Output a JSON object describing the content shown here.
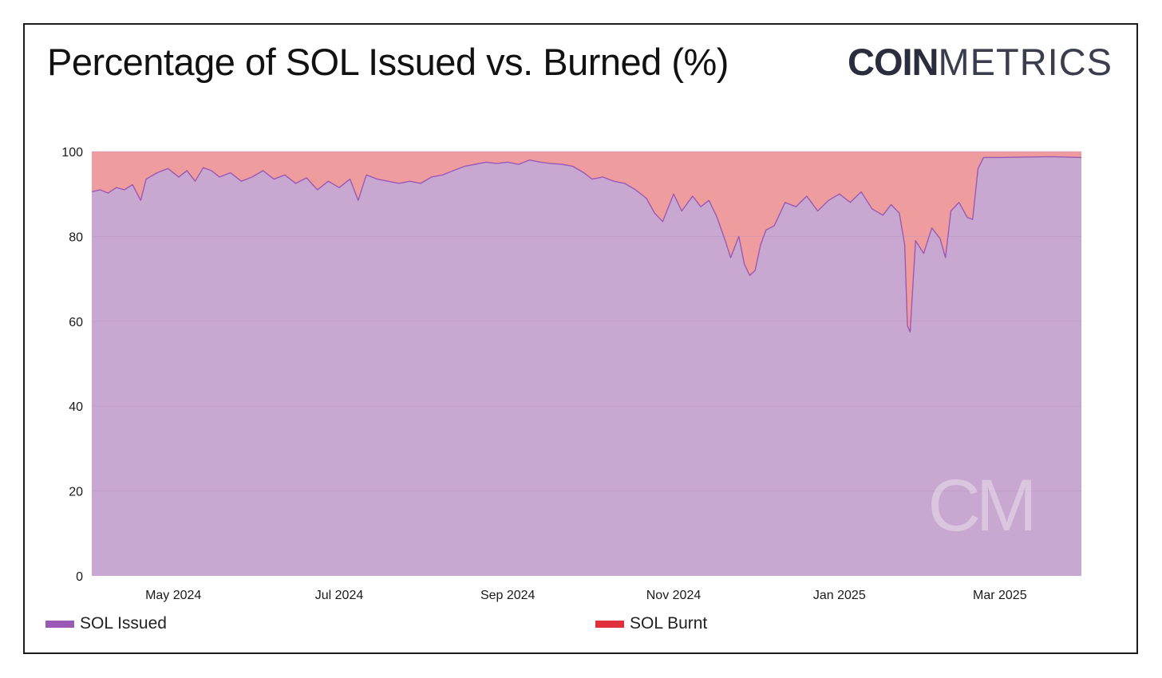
{
  "title": "Percentage of SOL Issued vs. Burned (%)",
  "logo": {
    "bold": "COIN",
    "light": "METRICS",
    "watermark": "CM"
  },
  "colors": {
    "issued_fill": "#c8a8d0",
    "issued_line": "#9b59b6",
    "burnt_fill": "#ef9c9e",
    "legend_issued": "#9b59b6",
    "legend_burnt": "#e0303c"
  },
  "chart_data": {
    "type": "area",
    "stacked": true,
    "x_range": [
      "2024-04-01",
      "2025-03-31"
    ],
    "ylim": [
      0,
      100
    ],
    "y_ticks": [
      0,
      20,
      40,
      60,
      80,
      100
    ],
    "x_tick_labels": [
      {
        "date": "2024-05-01",
        "label": "May 2024"
      },
      {
        "date": "2024-07-01",
        "label": "Jul 2024"
      },
      {
        "date": "2024-09-01",
        "label": "Sep 2024"
      },
      {
        "date": "2024-11-01",
        "label": "Nov 2024"
      },
      {
        "date": "2025-01-01",
        "label": "Jan 2025"
      },
      {
        "date": "2025-03-01",
        "label": "Mar 2025"
      }
    ],
    "series": [
      {
        "name": "SOL Issued",
        "points": [
          [
            "2024-04-01",
            90.5
          ],
          [
            "2024-04-04",
            91.0
          ],
          [
            "2024-04-07",
            90.2
          ],
          [
            "2024-04-10",
            91.5
          ],
          [
            "2024-04-13",
            91.0
          ],
          [
            "2024-04-16",
            92.2
          ],
          [
            "2024-04-19",
            88.5
          ],
          [
            "2024-04-21",
            93.5
          ],
          [
            "2024-04-25",
            95.0
          ],
          [
            "2024-04-29",
            96.0
          ],
          [
            "2024-05-03",
            94.0
          ],
          [
            "2024-05-06",
            95.5
          ],
          [
            "2024-05-09",
            93.0
          ],
          [
            "2024-05-12",
            96.2
          ],
          [
            "2024-05-15",
            95.5
          ],
          [
            "2024-05-18",
            94.0
          ],
          [
            "2024-05-22",
            95.0
          ],
          [
            "2024-05-26",
            93.0
          ],
          [
            "2024-05-30",
            94.0
          ],
          [
            "2024-06-03",
            95.5
          ],
          [
            "2024-06-07",
            93.5
          ],
          [
            "2024-06-11",
            94.5
          ],
          [
            "2024-06-15",
            92.5
          ],
          [
            "2024-06-19",
            93.8
          ],
          [
            "2024-06-23",
            91.0
          ],
          [
            "2024-06-27",
            93.0
          ],
          [
            "2024-07-01",
            91.5
          ],
          [
            "2024-07-05",
            93.5
          ],
          [
            "2024-07-08",
            88.5
          ],
          [
            "2024-07-11",
            94.5
          ],
          [
            "2024-07-15",
            93.5
          ],
          [
            "2024-07-19",
            93.0
          ],
          [
            "2024-07-23",
            92.5
          ],
          [
            "2024-07-27",
            93.0
          ],
          [
            "2024-07-31",
            92.5
          ],
          [
            "2024-08-04",
            94.0
          ],
          [
            "2024-08-08",
            94.5
          ],
          [
            "2024-08-12",
            95.5
          ],
          [
            "2024-08-16",
            96.5
          ],
          [
            "2024-08-20",
            97.0
          ],
          [
            "2024-08-24",
            97.5
          ],
          [
            "2024-08-28",
            97.2
          ],
          [
            "2024-09-01",
            97.5
          ],
          [
            "2024-09-05",
            97.0
          ],
          [
            "2024-09-09",
            98.0
          ],
          [
            "2024-09-13",
            97.5
          ],
          [
            "2024-09-17",
            97.2
          ],
          [
            "2024-09-21",
            97.0
          ],
          [
            "2024-09-25",
            96.5
          ],
          [
            "2024-09-29",
            95.0
          ],
          [
            "2024-10-02",
            93.5
          ],
          [
            "2024-10-06",
            94.0
          ],
          [
            "2024-10-10",
            93.0
          ],
          [
            "2024-10-14",
            92.5
          ],
          [
            "2024-10-18",
            91.0
          ],
          [
            "2024-10-22",
            89.0
          ],
          [
            "2024-10-25",
            85.5
          ],
          [
            "2024-10-28",
            83.5
          ],
          [
            "2024-11-01",
            90.0
          ],
          [
            "2024-11-04",
            86.0
          ],
          [
            "2024-11-08",
            89.5
          ],
          [
            "2024-11-11",
            87.0
          ],
          [
            "2024-11-14",
            88.5
          ],
          [
            "2024-11-17",
            84.5
          ],
          [
            "2024-11-20",
            79.0
          ],
          [
            "2024-11-22",
            75.0
          ],
          [
            "2024-11-25",
            80.0
          ],
          [
            "2024-11-27",
            73.5
          ],
          [
            "2024-11-29",
            70.8
          ],
          [
            "2024-12-01",
            72.0
          ],
          [
            "2024-12-03",
            78.0
          ],
          [
            "2024-12-05",
            81.5
          ],
          [
            "2024-12-08",
            82.5
          ],
          [
            "2024-12-12",
            88.0
          ],
          [
            "2024-12-16",
            87.0
          ],
          [
            "2024-12-20",
            89.5
          ],
          [
            "2024-12-24",
            86.0
          ],
          [
            "2024-12-28",
            88.5
          ],
          [
            "2025-01-01",
            90.0
          ],
          [
            "2025-01-05",
            88.0
          ],
          [
            "2025-01-09",
            90.5
          ],
          [
            "2025-01-13",
            86.5
          ],
          [
            "2025-01-17",
            85.0
          ],
          [
            "2025-01-20",
            87.5
          ],
          [
            "2025-01-23",
            85.5
          ],
          [
            "2025-01-25",
            78.0
          ],
          [
            "2025-01-26",
            59.0
          ],
          [
            "2025-01-27",
            57.5
          ],
          [
            "2025-01-29",
            79.0
          ],
          [
            "2025-02-01",
            76.0
          ],
          [
            "2025-02-04",
            82.0
          ],
          [
            "2025-02-07",
            79.5
          ],
          [
            "2025-02-09",
            75.0
          ],
          [
            "2025-02-11",
            86.0
          ],
          [
            "2025-02-14",
            88.0
          ],
          [
            "2025-02-17",
            84.5
          ],
          [
            "2025-02-19",
            84.0
          ],
          [
            "2025-02-21",
            96.0
          ],
          [
            "2025-02-23",
            98.6
          ],
          [
            "2025-03-01",
            98.6
          ],
          [
            "2025-03-10",
            98.7
          ],
          [
            "2025-03-20",
            98.8
          ],
          [
            "2025-03-31",
            98.6
          ]
        ]
      },
      {
        "name": "SOL Burnt",
        "note_complement": true
      }
    ]
  },
  "legend": [
    {
      "name": "SOL Issued"
    },
    {
      "name": "SOL Burnt"
    }
  ]
}
